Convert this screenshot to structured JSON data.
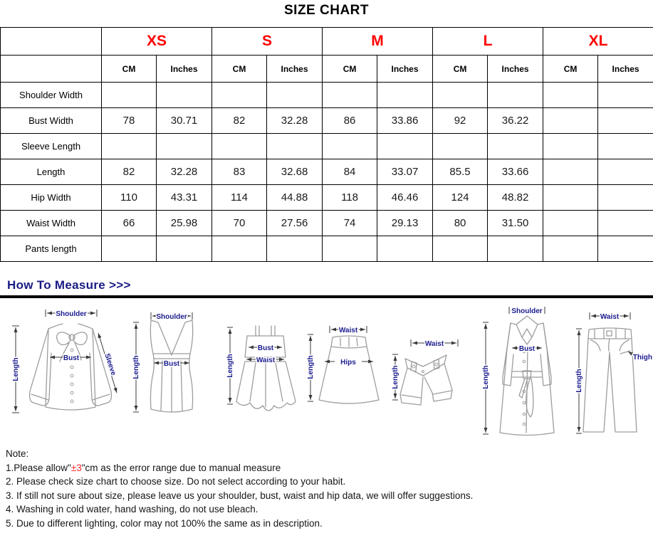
{
  "title": "SIZE CHART",
  "table": {
    "corner": "",
    "sizes": [
      "XS",
      "S",
      "M",
      "L",
      "XL"
    ],
    "unit_headers": [
      "CM",
      "Inches"
    ],
    "shaded_size_columns": [
      "XS",
      "M",
      "XL"
    ],
    "rows": [
      {
        "label": "Shoulder Width",
        "values": [
          "",
          "",
          "",
          "",
          "",
          "",
          "",
          "",
          "",
          ""
        ]
      },
      {
        "label": "Bust Width",
        "values": [
          "78",
          "30.71",
          "82",
          "32.28",
          "86",
          "33.86",
          "92",
          "36.22",
          "",
          ""
        ]
      },
      {
        "label": "Sleeve Length",
        "values": [
          "",
          "",
          "",
          "",
          "",
          "",
          "",
          "",
          "",
          ""
        ]
      },
      {
        "label": "Length",
        "values": [
          "82",
          "32.28",
          "83",
          "32.68",
          "84",
          "33.07",
          "85.5",
          "33.66",
          "",
          ""
        ]
      },
      {
        "label": "Hip Width",
        "values": [
          "110",
          "43.31",
          "114",
          "44.88",
          "118",
          "46.46",
          "124",
          "48.82",
          "",
          ""
        ]
      },
      {
        "label": "Waist Width",
        "values": [
          "66",
          "25.98",
          "70",
          "27.56",
          "74",
          "29.13",
          "80",
          "31.50",
          "",
          ""
        ]
      },
      {
        "label": "Pants length",
        "values": [
          "",
          "",
          "",
          "",
          "",
          "",
          "",
          "",
          "",
          ""
        ]
      }
    ]
  },
  "measure": {
    "heading": "How To Measure >>>"
  },
  "figures": [
    {
      "garment": "blouse",
      "labels": [
        "Shoulder",
        "Length",
        "Bust",
        "Sleeve"
      ]
    },
    {
      "garment": "tank-top",
      "labels": [
        "Shoulder",
        "Length",
        "Bust"
      ]
    },
    {
      "garment": "dress",
      "labels": [
        "Bust",
        "Waist",
        "Length"
      ]
    },
    {
      "garment": "skirt",
      "labels": [
        "Waist",
        "Length",
        "Hips"
      ]
    },
    {
      "garment": "shorts",
      "labels": [
        "Waist",
        "Length"
      ]
    },
    {
      "garment": "coat",
      "labels": [
        "Shoulder",
        "Length",
        "Bust"
      ]
    },
    {
      "garment": "pants",
      "labels": [
        "Waist",
        "Length",
        "Thigh"
      ]
    }
  ],
  "notes": {
    "heading": "Note:",
    "item1_prefix": "1.Please allow\"",
    "item1_highlight": "±3",
    "item1_suffix": "\"cm as the error range due to manual measure",
    "items_rest": [
      "2. Please check size chart to choose size. Do not select according to your habit.",
      "3. If still not sure about size, please leave us your shoulder, bust, waist and hip data, we will offer suggestions.",
      "4. Washing in cold water, hand washing, do not use bleach.",
      "5. Due to different lighting, color may not 100% the same as in description."
    ]
  },
  "colors": {
    "size_label": "#ff0000",
    "shaded_cell": "#d6dbe3",
    "measure_heading": "#1a1a85",
    "figure_label": "#1b1b8e",
    "note_highlight": "#ff2a2a",
    "table_border": "#000000"
  }
}
